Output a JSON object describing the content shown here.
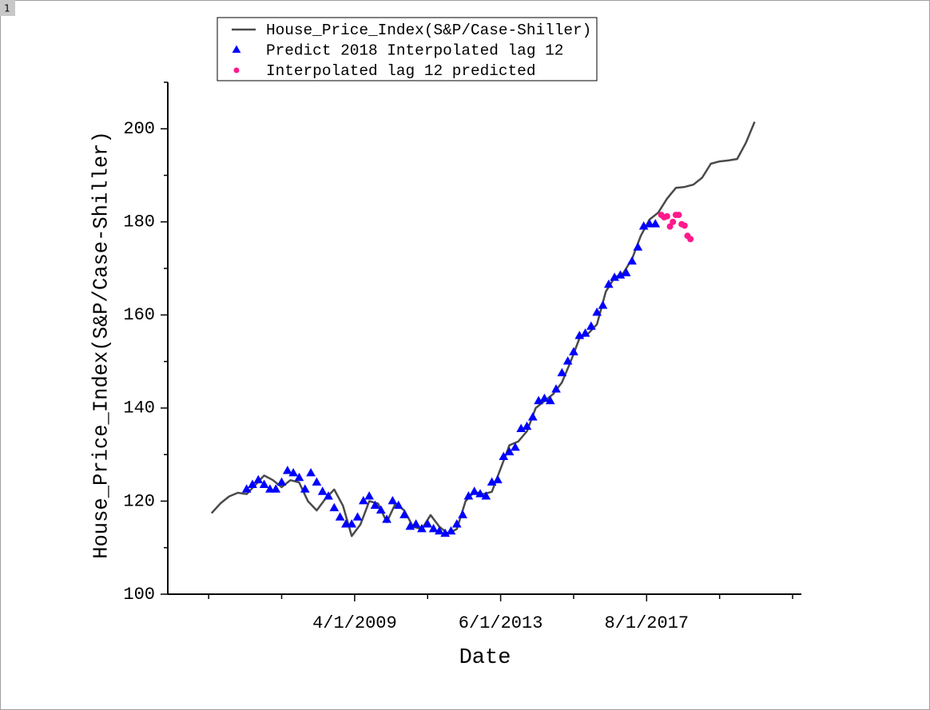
{
  "page_tab": "1",
  "chart_data": {
    "type": "line-scatter",
    "x_label": "Date",
    "y_label": "House_Price_Index(S&P/Case-Shiller)",
    "xlim": [
      "12/1/2003",
      "1/1/2022"
    ],
    "xticks": [
      "4/1/2009",
      "6/1/2013",
      "8/1/2017"
    ],
    "xminorticks": [
      "2/1/2005",
      "3/1/2007",
      "5/1/2011",
      "7/1/2015",
      "9/1/2019",
      "10/1/2021"
    ],
    "ylim": [
      100,
      210
    ],
    "yticks": [
      100,
      120,
      140,
      160,
      180,
      200
    ],
    "yminorticks": [
      110,
      130,
      150,
      170,
      190,
      210
    ],
    "legend": "top-left",
    "series": [
      {
        "name": "House_Price_Index(S&P/Case-Shiller)",
        "marker": "line",
        "color": "#4a4a4a",
        "x": [
          "3/1/2005",
          "6/1/2005",
          "9/1/2005",
          "12/1/2005",
          "3/1/2006",
          "6/1/2006",
          "9/1/2006",
          "12/1/2006",
          "3/1/2007",
          "6/1/2007",
          "9/1/2007",
          "12/1/2007",
          "3/1/2008",
          "6/1/2008",
          "9/1/2008",
          "12/1/2008",
          "3/1/2009",
          "6/1/2009",
          "9/1/2009",
          "12/1/2009",
          "3/1/2010",
          "6/1/2010",
          "9/1/2010",
          "12/1/2010",
          "3/1/2011",
          "6/1/2011",
          "9/1/2011",
          "12/1/2011",
          "3/1/2012",
          "6/1/2012",
          "9/1/2012",
          "12/1/2012",
          "3/1/2013",
          "6/1/2013",
          "9/1/2013",
          "12/1/2013",
          "3/1/2014",
          "6/1/2014",
          "9/1/2014",
          "12/1/2014",
          "3/1/2015",
          "6/1/2015",
          "9/1/2015",
          "12/1/2015",
          "3/1/2016",
          "6/1/2016",
          "9/1/2016",
          "12/1/2016",
          "3/1/2017",
          "6/1/2017",
          "9/1/2017",
          "12/1/2017",
          "3/1/2018",
          "6/1/2018",
          "9/1/2018",
          "12/1/2018",
          "3/1/2019",
          "6/1/2019",
          "9/1/2019",
          "12/1/2019",
          "3/1/2020",
          "6/1/2020",
          "9/1/2020"
        ],
        "values": [
          117.4,
          119.5,
          121.0,
          121.8,
          121.5,
          123.5,
          125.5,
          124.5,
          123,
          124.5,
          124,
          120,
          118,
          120.5,
          122.5,
          119,
          112.5,
          115,
          120,
          119.5,
          115.5,
          119.5,
          118,
          114.5,
          114,
          117,
          114.5,
          113,
          114,
          120,
          122,
          121.5,
          122,
          127,
          132,
          132.8,
          135,
          140,
          141.5,
          143,
          145.5,
          150,
          155,
          156,
          158,
          165,
          168,
          169,
          172,
          177,
          180.5,
          182,
          185,
          187.3,
          187.5,
          188,
          189.5,
          192.5,
          193,
          193.2,
          193.5,
          197,
          201.5
        ]
      },
      {
        "name": "Predict 2018 Interpolated lag 12",
        "marker": "triangle",
        "color": "#0000ff",
        "x": [
          "3/1/2006",
          "5/1/2006",
          "7/1/2006",
          "9/1/2006",
          "11/1/2006",
          "1/1/2007",
          "3/1/2007",
          "5/1/2007",
          "7/1/2007",
          "9/1/2007",
          "11/1/2007",
          "1/1/2008",
          "3/1/2008",
          "5/1/2008",
          "7/1/2008",
          "9/1/2008",
          "11/1/2008",
          "1/1/2009",
          "3/1/2009",
          "5/1/2009",
          "7/1/2009",
          "9/1/2009",
          "11/1/2009",
          "1/1/2010",
          "3/1/2010",
          "5/1/2010",
          "7/1/2010",
          "9/1/2010",
          "11/1/2010",
          "1/1/2011",
          "3/1/2011",
          "5/1/2011",
          "7/1/2011",
          "9/1/2011",
          "11/1/2011",
          "1/1/2012",
          "3/1/2012",
          "5/1/2012",
          "7/1/2012",
          "9/1/2012",
          "11/1/2012",
          "1/1/2013",
          "3/1/2013",
          "5/1/2013",
          "7/1/2013",
          "9/1/2013",
          "11/1/2013",
          "1/1/2014",
          "3/1/2014",
          "5/1/2014",
          "7/1/2014",
          "9/1/2014",
          "11/1/2014",
          "1/1/2015",
          "3/1/2015",
          "5/1/2015",
          "7/1/2015",
          "9/1/2015",
          "11/1/2015",
          "1/1/2016",
          "3/1/2016",
          "5/1/2016",
          "7/1/2016",
          "9/1/2016",
          "11/1/2016",
          "1/1/2017",
          "3/1/2017",
          "5/1/2017",
          "7/1/2017",
          "9/1/2017",
          "11/1/2017"
        ],
        "values": [
          122.5,
          123.5,
          124.5,
          123.5,
          122.5,
          122.5,
          124,
          126.5,
          126,
          125,
          122.5,
          126,
          124,
          122,
          121,
          118.5,
          116.5,
          115,
          115,
          116.5,
          120,
          121,
          119,
          118,
          116,
          120,
          119,
          117,
          114.5,
          115,
          114,
          115,
          114,
          113.5,
          113,
          113.5,
          115,
          117,
          121,
          122,
          121.5,
          121,
          124,
          124.5,
          129.5,
          130.5,
          131.5,
          135.5,
          136,
          138,
          141.5,
          142,
          141.5,
          144,
          147.5,
          150,
          152,
          155.5,
          156,
          157.5,
          160.5,
          162,
          166.5,
          168,
          168.5,
          169,
          171.5,
          174.5,
          179,
          179.5,
          179.5
        ]
      },
      {
        "name": "Interpolated  lag 12 predicted",
        "marker": "circle",
        "color": "#ff1a8c",
        "x": [
          "1/1/2018",
          "2/1/2018",
          "3/1/2018",
          "4/1/2018",
          "5/1/2018",
          "6/1/2018",
          "7/1/2018",
          "8/1/2018",
          "9/1/2018",
          "10/1/2018",
          "11/1/2018"
        ],
        "values": [
          181.5,
          181,
          181.2,
          179,
          180,
          181.5,
          181.5,
          179.5,
          179.2,
          177,
          176.3
        ]
      }
    ]
  }
}
